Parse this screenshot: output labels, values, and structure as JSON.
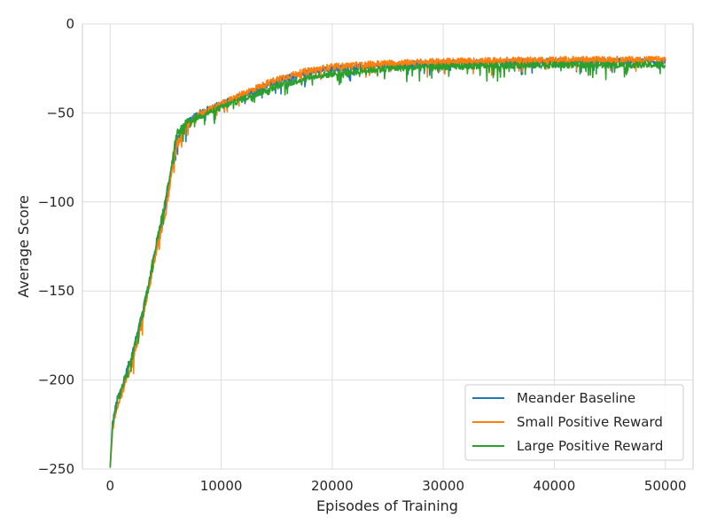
{
  "chart_data": {
    "type": "line",
    "title": "",
    "xlabel": "Episodes of Training",
    "ylabel": "Average Score",
    "xlim": [
      -2500,
      52500
    ],
    "ylim": [
      -250,
      0
    ],
    "x_ticks": [
      0,
      10000,
      20000,
      30000,
      40000,
      50000
    ],
    "x_tick_labels": [
      "0",
      "10000",
      "20000",
      "30000",
      "40000",
      "50000"
    ],
    "y_ticks": [
      0,
      -50,
      -100,
      -150,
      -200,
      -250
    ],
    "y_tick_labels": [
      "0",
      "−50",
      "−100",
      "−150",
      "−200",
      "−250"
    ],
    "grid": true,
    "legend_position": "bottom-right",
    "noisy": true,
    "series": [
      {
        "name": "Meander Baseline",
        "color": "#1f77b4",
        "points": [
          [
            0,
            -250
          ],
          [
            200,
            -225
          ],
          [
            600,
            -212
          ],
          [
            1000,
            -205
          ],
          [
            2000,
            -185
          ],
          [
            3000,
            -160
          ],
          [
            4000,
            -130
          ],
          [
            5000,
            -100
          ],
          [
            6000,
            -65
          ],
          [
            7000,
            -55
          ],
          [
            8000,
            -50
          ],
          [
            10000,
            -45
          ],
          [
            12000,
            -40
          ],
          [
            15000,
            -32
          ],
          [
            18000,
            -27
          ],
          [
            20000,
            -25
          ],
          [
            25000,
            -23
          ],
          [
            30000,
            -22
          ],
          [
            40000,
            -21
          ],
          [
            50000,
            -21
          ]
        ]
      },
      {
        "name": "Small Positive Reward",
        "color": "#ff7f0e",
        "points": [
          [
            0,
            -250
          ],
          [
            200,
            -228
          ],
          [
            600,
            -215
          ],
          [
            1000,
            -208
          ],
          [
            2000,
            -190
          ],
          [
            3000,
            -163
          ],
          [
            4000,
            -133
          ],
          [
            5000,
            -105
          ],
          [
            6000,
            -68
          ],
          [
            7000,
            -57
          ],
          [
            8000,
            -51
          ],
          [
            10000,
            -45
          ],
          [
            12000,
            -39
          ],
          [
            15000,
            -31
          ],
          [
            18000,
            -26
          ],
          [
            20000,
            -24
          ],
          [
            25000,
            -22
          ],
          [
            30000,
            -21
          ],
          [
            40000,
            -20
          ],
          [
            50000,
            -20
          ]
        ]
      },
      {
        "name": "Large Positive Reward",
        "color": "#2ca02c",
        "points": [
          [
            0,
            -250
          ],
          [
            200,
            -226
          ],
          [
            600,
            -213
          ],
          [
            1000,
            -206
          ],
          [
            2000,
            -186
          ],
          [
            3000,
            -160
          ],
          [
            4000,
            -128
          ],
          [
            5000,
            -98
          ],
          [
            6000,
            -62
          ],
          [
            7000,
            -55
          ],
          [
            8000,
            -52
          ],
          [
            10000,
            -47
          ],
          [
            12000,
            -42
          ],
          [
            15000,
            -35
          ],
          [
            18000,
            -30
          ],
          [
            20000,
            -28
          ],
          [
            25000,
            -25
          ],
          [
            30000,
            -24
          ],
          [
            40000,
            -23
          ],
          [
            50000,
            -23
          ]
        ]
      }
    ]
  }
}
